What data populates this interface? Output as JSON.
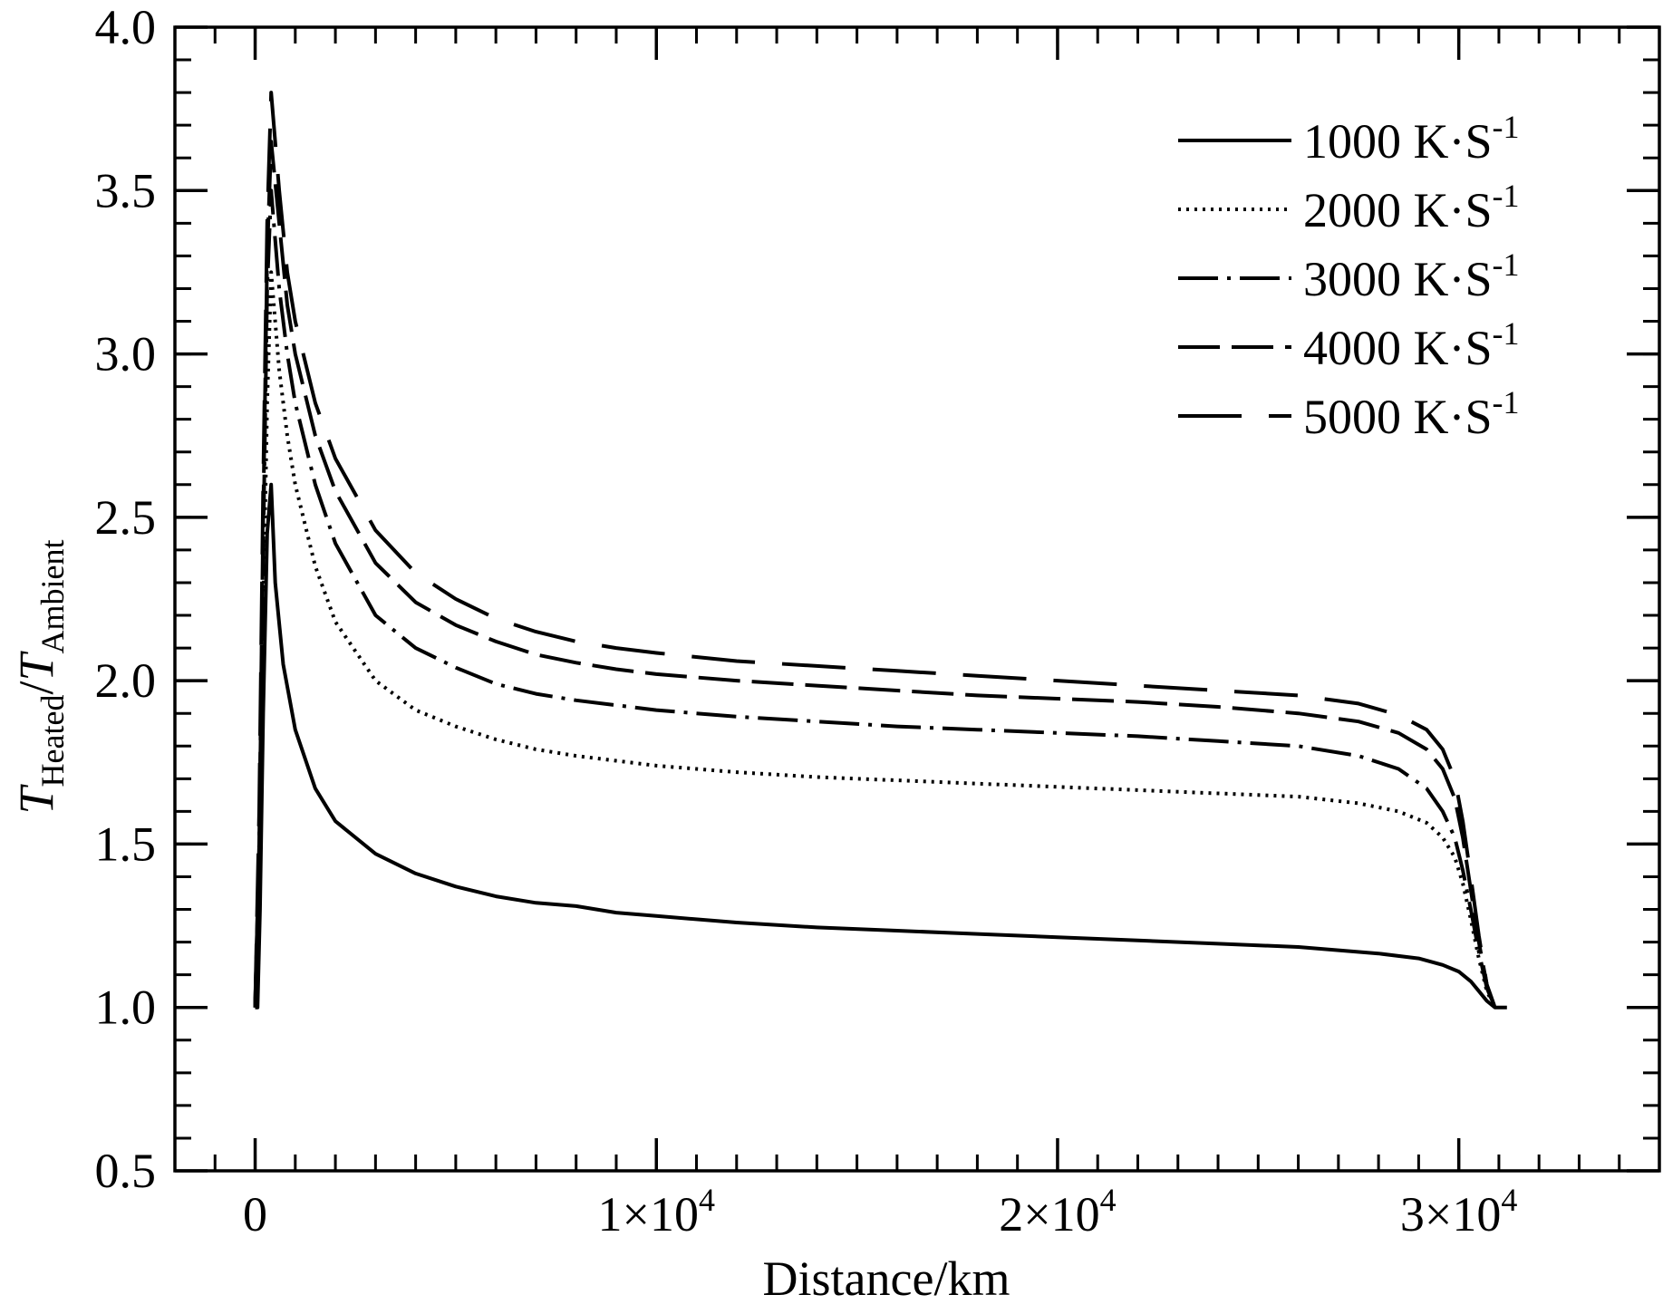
{
  "chart_data": {
    "type": "line",
    "xlabel": "Distance/km",
    "ylabel": {
      "main": "T",
      "sub1": "Heated",
      "slash": "/",
      "main2": "T",
      "sub2": "Ambient"
    },
    "xlim": [
      -2000,
      35000
    ],
    "ylim": [
      0.5,
      4.0
    ],
    "x_ticks": [
      {
        "value": 0,
        "mantissa": "0",
        "times": "",
        "base": "",
        "exp": ""
      },
      {
        "value": 10000,
        "mantissa": "1",
        "times": "×",
        "base": "10",
        "exp": "4"
      },
      {
        "value": 20000,
        "mantissa": "2",
        "times": "×",
        "base": "10",
        "exp": "4"
      },
      {
        "value": 30000,
        "mantissa": "3",
        "times": "×",
        "base": "10",
        "exp": "4"
      }
    ],
    "x_minor_step": 1000,
    "y_ticks": [
      {
        "value": 0.5,
        "label": "0.5"
      },
      {
        "value": 1.0,
        "label": "1.0"
      },
      {
        "value": 1.5,
        "label": "1.5"
      },
      {
        "value": 2.0,
        "label": "2.0"
      },
      {
        "value": 2.5,
        "label": "2.5"
      },
      {
        "value": 3.0,
        "label": "3.0"
      },
      {
        "value": 3.5,
        "label": "3.5"
      },
      {
        "value": 4.0,
        "label": "4.0"
      }
    ],
    "y_minor_step": 0.1,
    "legend_position": "top-right",
    "series": [
      {
        "name": "1000",
        "label_value": "1000",
        "label_unit": "K·S",
        "label_exp": "-1",
        "dash": "none",
        "x": [
          0,
          60,
          120,
          200,
          300,
          400,
          500,
          700,
          1000,
          1500,
          2000,
          3000,
          4000,
          5000,
          6000,
          7000,
          8000,
          9000,
          10000,
          12000,
          14000,
          16000,
          18000,
          20000,
          22000,
          24000,
          26000,
          28000,
          29000,
          29600,
          30000,
          30300,
          30500,
          30700,
          30900,
          31200
        ],
        "y": [
          1.0,
          1.0,
          1.3,
          1.9,
          2.45,
          2.6,
          2.3,
          2.05,
          1.85,
          1.67,
          1.57,
          1.47,
          1.41,
          1.37,
          1.34,
          1.32,
          1.31,
          1.29,
          1.28,
          1.26,
          1.245,
          1.235,
          1.225,
          1.215,
          1.205,
          1.195,
          1.185,
          1.165,
          1.15,
          1.13,
          1.11,
          1.08,
          1.05,
          1.02,
          1.0,
          1.0
        ]
      },
      {
        "name": "2000",
        "label_value": "2000",
        "label_unit": "K·S",
        "label_exp": "-1",
        "dash": "3 6",
        "x": [
          0,
          100,
          200,
          300,
          400,
          600,
          800,
          1000,
          1500,
          2000,
          3000,
          4000,
          5000,
          6000,
          7000,
          8000,
          9000,
          10000,
          12000,
          14000,
          16000,
          18000,
          20000,
          22000,
          24000,
          26000,
          27500,
          28500,
          29200,
          29600,
          29900,
          30100,
          30300,
          30500,
          30700,
          30900
        ],
        "y": [
          1.0,
          1.4,
          2.2,
          2.85,
          3.25,
          2.95,
          2.75,
          2.6,
          2.35,
          2.18,
          2.0,
          1.91,
          1.86,
          1.82,
          1.79,
          1.77,
          1.755,
          1.74,
          1.72,
          1.705,
          1.695,
          1.685,
          1.675,
          1.665,
          1.655,
          1.645,
          1.625,
          1.6,
          1.565,
          1.52,
          1.46,
          1.38,
          1.27,
          1.15,
          1.05,
          1.0
        ]
      },
      {
        "name": "3000",
        "label_value": "3000",
        "label_unit": "K·S",
        "label_exp": "-1",
        "dash": "44 10 4 10",
        "x": [
          0,
          100,
          200,
          300,
          400,
          600,
          800,
          1000,
          1500,
          2000,
          3000,
          4000,
          5000,
          6000,
          7000,
          8000,
          9000,
          10000,
          12000,
          14000,
          16000,
          18000,
          20000,
          22000,
          24000,
          26000,
          27500,
          28500,
          29200,
          29600,
          29900,
          30100,
          30300,
          30500,
          30700,
          30900
        ],
        "y": [
          1.0,
          1.5,
          2.4,
          3.2,
          3.5,
          3.2,
          3.0,
          2.85,
          2.6,
          2.42,
          2.2,
          2.1,
          2.04,
          1.99,
          1.96,
          1.94,
          1.925,
          1.91,
          1.89,
          1.875,
          1.86,
          1.85,
          1.84,
          1.83,
          1.815,
          1.8,
          1.77,
          1.73,
          1.67,
          1.6,
          1.52,
          1.42,
          1.3,
          1.17,
          1.06,
          1.0
        ]
      },
      {
        "name": "4000",
        "label_value": "4000",
        "label_unit": "K·S",
        "label_exp": "-1",
        "dash": "46 13",
        "x": [
          0,
          100,
          200,
          300,
          400,
          600,
          800,
          1000,
          1500,
          2000,
          3000,
          4000,
          5000,
          6000,
          7000,
          8000,
          9000,
          10000,
          12000,
          14000,
          16000,
          18000,
          20000,
          22000,
          24000,
          26000,
          27500,
          28500,
          29200,
          29600,
          29900,
          30100,
          30300,
          30500,
          30700,
          30900
        ],
        "y": [
          1.0,
          1.5,
          2.5,
          3.3,
          3.65,
          3.4,
          3.15,
          3.0,
          2.75,
          2.58,
          2.36,
          2.24,
          2.17,
          2.12,
          2.08,
          2.055,
          2.035,
          2.02,
          2.0,
          1.985,
          1.97,
          1.955,
          1.945,
          1.935,
          1.92,
          1.9,
          1.875,
          1.84,
          1.79,
          1.73,
          1.64,
          1.52,
          1.36,
          1.2,
          1.07,
          1.0
        ]
      },
      {
        "name": "5000",
        "label_value": "5000",
        "label_unit": "K·S",
        "label_exp": "-1",
        "dash": "70 30",
        "x": [
          0,
          100,
          200,
          300,
          400,
          600,
          800,
          1000,
          1500,
          2000,
          3000,
          4000,
          5000,
          6000,
          7000,
          8000,
          9000,
          10000,
          12000,
          14000,
          16000,
          18000,
          20000,
          22000,
          24000,
          26000,
          27500,
          28500,
          29200,
          29600,
          29900,
          30100,
          30300,
          30500,
          30700,
          30900
        ],
        "y": [
          1.0,
          1.6,
          2.6,
          3.4,
          3.8,
          3.5,
          3.25,
          3.1,
          2.85,
          2.68,
          2.46,
          2.33,
          2.25,
          2.19,
          2.15,
          2.12,
          2.1,
          2.085,
          2.06,
          2.045,
          2.03,
          2.015,
          2.0,
          1.985,
          1.97,
          1.955,
          1.93,
          1.895,
          1.85,
          1.79,
          1.7,
          1.57,
          1.4,
          1.22,
          1.07,
          1.0
        ]
      }
    ]
  }
}
